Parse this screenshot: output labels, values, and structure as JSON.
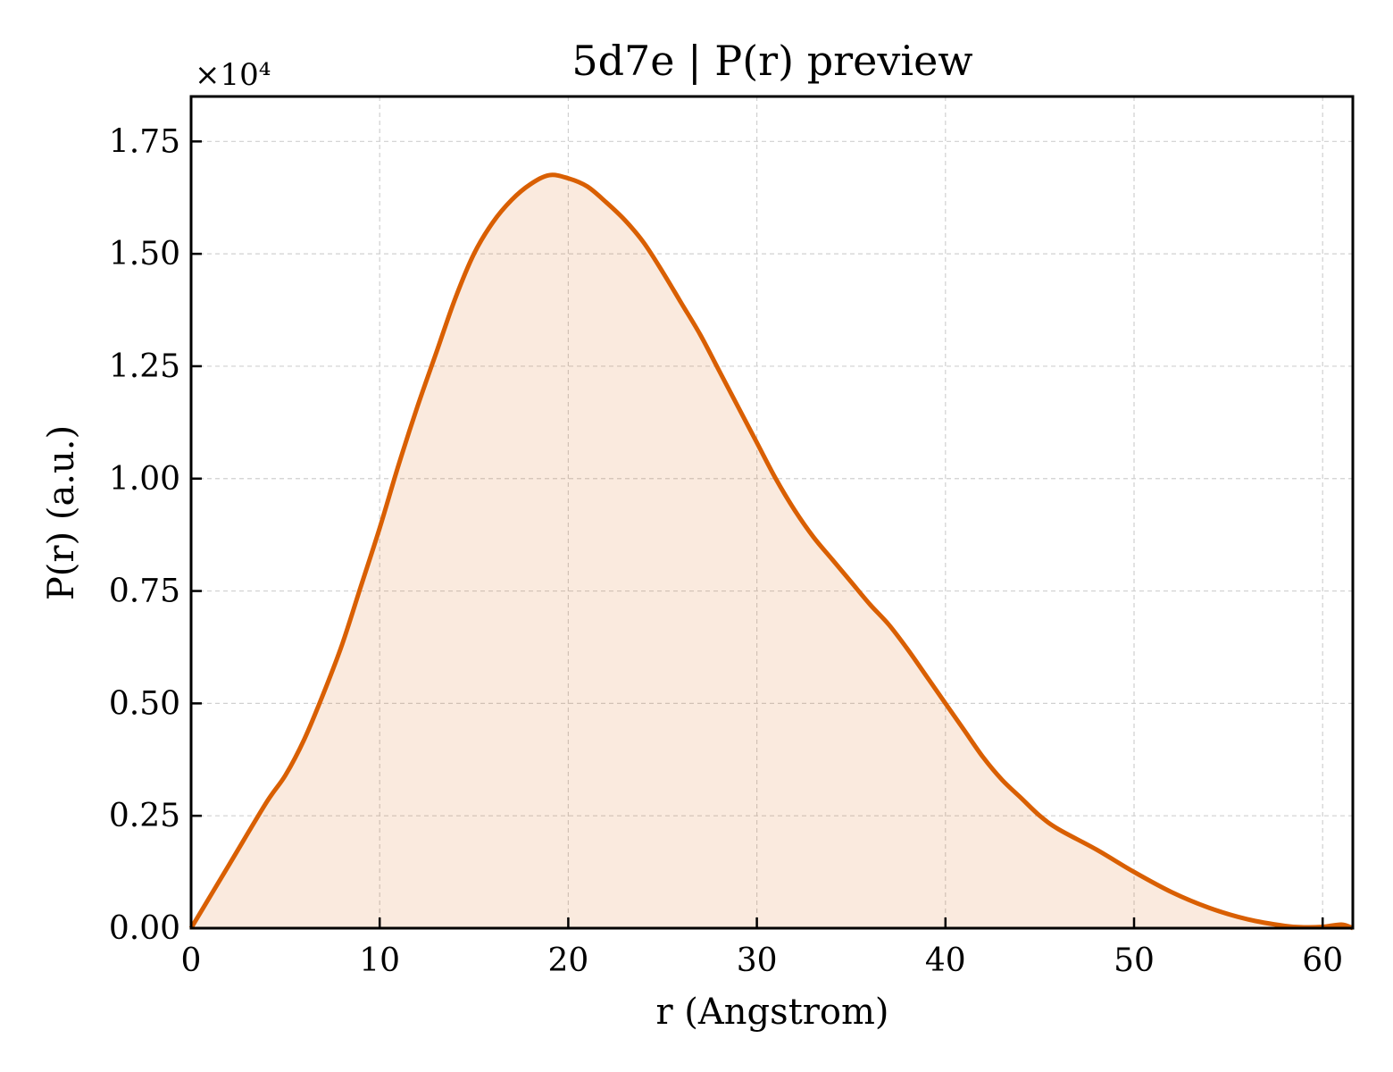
{
  "chart_data": {
    "type": "area",
    "title": "5d7e | P(r) preview",
    "xlabel": "r (Angstrom)",
    "ylabel": "P(r) (a.u.)",
    "y_multiplier_label": "×10⁴",
    "xlim": [
      0,
      61.6
    ],
    "ylim": [
      0,
      1.85
    ],
    "y_scale_factor": 10000,
    "x_ticks": [
      0,
      10,
      20,
      30,
      40,
      50,
      60
    ],
    "x_tick_labels": [
      "0",
      "10",
      "20",
      "30",
      "40",
      "50",
      "60"
    ],
    "y_ticks": [
      0,
      0.25,
      0.5,
      0.75,
      1.0,
      1.25,
      1.5,
      1.75
    ],
    "y_tick_labels": [
      "0.00",
      "0.25",
      "0.50",
      "0.75",
      "1.00",
      "1.25",
      "1.50",
      "1.75"
    ],
    "grid": true,
    "line_color": "#d95f02",
    "fill_color": "#d95f02",
    "fill_opacity": 0.13,
    "series": [
      {
        "x": [
          0,
          2,
          4,
          5,
          6,
          7,
          8,
          9,
          10,
          11,
          12,
          13,
          14,
          15,
          16,
          17,
          18,
          19,
          20,
          21,
          22,
          23,
          24,
          25,
          26,
          27,
          28,
          29,
          30,
          31,
          32,
          33,
          34,
          35,
          36,
          37,
          38,
          39,
          40,
          41,
          42,
          43,
          44,
          45,
          46,
          48,
          50,
          52,
          54,
          56,
          58,
          59,
          60,
          61,
          61.6
        ],
        "y": [
          0.0,
          0.14,
          0.28,
          0.34,
          0.42,
          0.52,
          0.63,
          0.76,
          0.89,
          1.03,
          1.16,
          1.28,
          1.4,
          1.5,
          1.57,
          1.62,
          1.655,
          1.675,
          1.668,
          1.65,
          1.615,
          1.575,
          1.525,
          1.46,
          1.39,
          1.32,
          1.24,
          1.16,
          1.08,
          1.0,
          0.93,
          0.87,
          0.82,
          0.77,
          0.72,
          0.675,
          0.62,
          0.56,
          0.5,
          0.44,
          0.38,
          0.33,
          0.29,
          0.25,
          0.22,
          0.175,
          0.125,
          0.08,
          0.045,
          0.02,
          0.005,
          0.002,
          0.003,
          0.008,
          0.0
        ]
      }
    ]
  }
}
